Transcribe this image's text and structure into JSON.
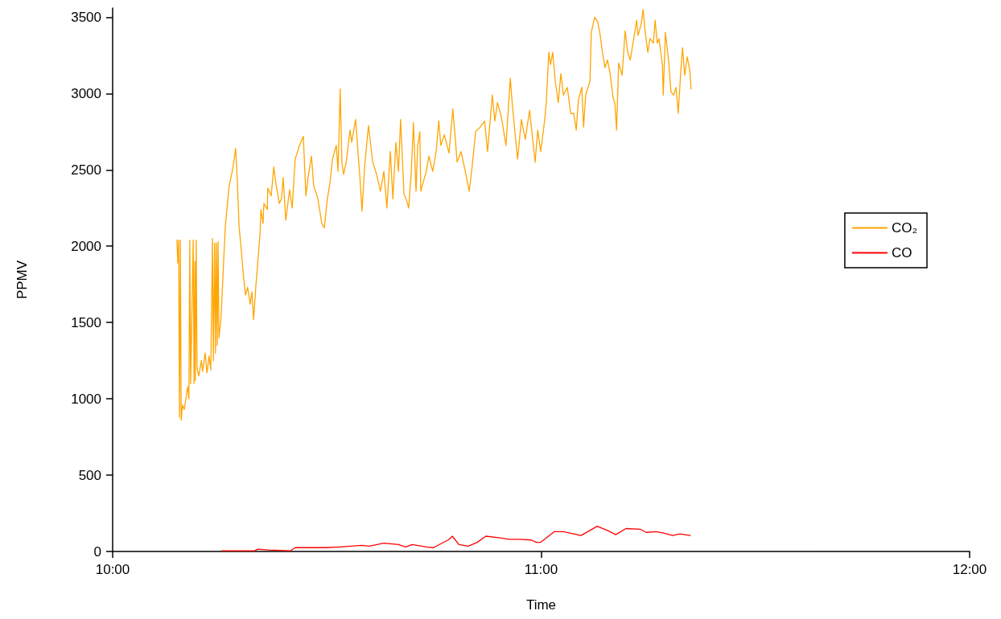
{
  "chart_data": {
    "type": "line",
    "xlabel": "Time",
    "ylabel": "PPMV",
    "xlim": [
      10,
      12
    ],
    "xticks": [
      {
        "value": 10,
        "label": "10:00"
      },
      {
        "value": 11,
        "label": "11:00"
      },
      {
        "value": 12,
        "label": "12:00"
      }
    ],
    "ylim": [
      0,
      3560
    ],
    "yticks": [
      0,
      500,
      1000,
      1500,
      2000,
      2500,
      3000,
      3500
    ],
    "legend": "right",
    "line_style": "solid",
    "series": [
      {
        "name": "CO₂",
        "color": "#ffa500",
        "x": [
          10.15,
          10.152,
          10.154,
          10.156,
          10.158,
          10.16,
          10.163,
          10.167,
          10.171,
          10.175,
          10.178,
          10.18,
          10.182,
          10.188,
          10.19,
          10.192,
          10.193,
          10.195,
          10.197,
          10.201,
          10.207,
          10.21,
          10.216,
          10.22,
          10.225,
          10.229,
          10.233,
          10.235,
          10.238,
          10.24,
          10.242,
          10.244,
          10.246,
          10.248,
          10.252,
          10.255,
          10.259,
          10.263,
          10.272,
          10.28,
          10.287,
          10.291,
          10.295,
          10.3,
          10.306,
          10.31,
          10.315,
          10.321,
          10.325,
          10.329,
          10.334,
          10.338,
          10.344,
          10.346,
          10.351,
          10.353,
          10.361,
          10.362,
          10.37,
          10.376,
          10.381,
          10.389,
          10.394,
          10.398,
          10.404,
          10.413,
          10.419,
          10.426,
          10.436,
          10.445,
          10.451,
          10.456,
          10.464,
          10.469,
          10.479,
          10.488,
          10.494,
          10.501,
          10.507,
          10.513,
          10.522,
          10.526,
          10.531,
          10.535,
          10.539,
          10.545,
          10.554,
          10.558,
          10.567,
          10.577,
          10.582,
          10.588,
          10.597,
          10.607,
          10.616,
          10.625,
          10.633,
          10.64,
          10.648,
          10.654,
          10.661,
          10.667,
          10.672,
          10.68,
          10.685,
          10.691,
          10.697,
          10.702,
          10.708,
          10.712,
          10.717,
          10.719,
          10.732,
          10.738,
          10.747,
          10.755,
          10.761,
          10.766,
          10.774,
          10.785,
          10.794,
          10.804,
          10.813,
          10.823,
          10.832,
          10.839,
          10.847,
          10.858,
          10.868,
          10.875,
          10.886,
          10.892,
          10.898,
          10.907,
          10.918,
          10.928,
          10.933,
          10.945,
          10.954,
          10.963,
          10.973,
          10.978,
          10.986,
          10.992,
          10.999,
          11.008,
          11.012,
          11.018,
          11.022,
          11.027,
          11.033,
          11.04,
          11.046,
          11.052,
          11.061,
          11.069,
          11.076,
          11.082,
          11.087,
          11.095,
          11.099,
          11.104,
          11.114,
          11.117,
          11.125,
          11.132,
          11.138,
          11.142,
          11.149,
          11.155,
          11.161,
          11.168,
          11.172,
          11.176,
          11.181,
          11.189,
          11.196,
          11.202,
          11.208,
          11.215,
          11.223,
          11.226,
          11.234,
          11.238,
          11.243,
          11.249,
          11.254,
          11.262,
          11.266,
          11.271,
          11.275,
          11.283,
          11.285,
          11.29,
          11.298,
          11.303,
          11.309,
          11.315,
          11.32,
          11.326,
          11.33,
          11.335,
          11.341,
          11.347,
          11.35
        ],
        "values": [
          2040,
          1890,
          2040,
          880,
          2040,
          860,
          960,
          930,
          1000,
          1080,
          1000,
          2040,
          1100,
          2040,
          1100,
          1900,
          1120,
          2040,
          1200,
          1150,
          1250,
          1180,
          1300,
          1170,
          1280,
          1190,
          2050,
          1250,
          2020,
          1300,
          2020,
          1350,
          2030,
          1400,
          1500,
          1650,
          1900,
          2130,
          2400,
          2500,
          2640,
          2430,
          2130,
          1980,
          1780,
          1680,
          1730,
          1620,
          1700,
          1520,
          1730,
          1870,
          2080,
          2240,
          2150,
          2280,
          2240,
          2380,
          2330,
          2520,
          2410,
          2280,
          2310,
          2450,
          2170,
          2370,
          2250,
          2570,
          2660,
          2720,
          2330,
          2450,
          2590,
          2400,
          2310,
          2150,
          2120,
          2310,
          2410,
          2570,
          2660,
          2490,
          3030,
          2550,
          2470,
          2550,
          2760,
          2680,
          2830,
          2450,
          2230,
          2520,
          2790,
          2550,
          2470,
          2360,
          2490,
          2250,
          2620,
          2310,
          2680,
          2490,
          2830,
          2340,
          2310,
          2250,
          2490,
          2810,
          2360,
          2660,
          2750,
          2360,
          2490,
          2590,
          2490,
          2620,
          2820,
          2660,
          2730,
          2610,
          2900,
          2550,
          2620,
          2490,
          2360,
          2520,
          2750,
          2780,
          2820,
          2620,
          2990,
          2820,
          2940,
          2850,
          2660,
          3100,
          2920,
          2570,
          2830,
          2700,
          2890,
          2760,
          2550,
          2760,
          2620,
          2820,
          2940,
          3270,
          3190,
          3270,
          3080,
          2940,
          3130,
          2990,
          3040,
          2870,
          2870,
          2760,
          2960,
          3040,
          2780,
          2990,
          3080,
          3400,
          3500,
          3470,
          3380,
          3290,
          3170,
          3220,
          3130,
          2970,
          2940,
          2760,
          3200,
          3120,
          3410,
          3270,
          3220,
          3340,
          3480,
          3380,
          3460,
          3550,
          3400,
          3270,
          3360,
          3330,
          3480,
          3330,
          3360,
          3190,
          2990,
          3400,
          3200,
          3010,
          2990,
          3040,
          2870,
          3150,
          3300,
          3120,
          3240,
          3150,
          3030
        ]
      },
      {
        "name": "CO",
        "color": "#ff0000",
        "x": [
          10.255,
          10.289,
          10.331,
          10.339,
          10.364,
          10.415,
          10.426,
          10.456,
          10.498,
          10.531,
          10.582,
          10.599,
          10.633,
          10.667,
          10.684,
          10.699,
          10.732,
          10.749,
          10.762,
          10.783,
          10.793,
          10.808,
          10.83,
          10.851,
          10.871,
          10.901,
          10.926,
          10.95,
          10.977,
          10.989,
          10.999,
          11.031,
          11.052,
          11.093,
          11.131,
          11.157,
          11.174,
          11.198,
          11.232,
          11.245,
          11.269,
          11.286,
          11.307,
          11.324,
          11.348
        ],
        "values": [
          5,
          5,
          5,
          15,
          10,
          5,
          25,
          25,
          25,
          30,
          40,
          35,
          55,
          45,
          30,
          45,
          30,
          25,
          45,
          75,
          100,
          45,
          35,
          60,
          100,
          90,
          80,
          80,
          75,
          60,
          60,
          130,
          130,
          105,
          165,
          135,
          110,
          150,
          145,
          125,
          130,
          120,
          105,
          115,
          105
        ]
      }
    ]
  }
}
